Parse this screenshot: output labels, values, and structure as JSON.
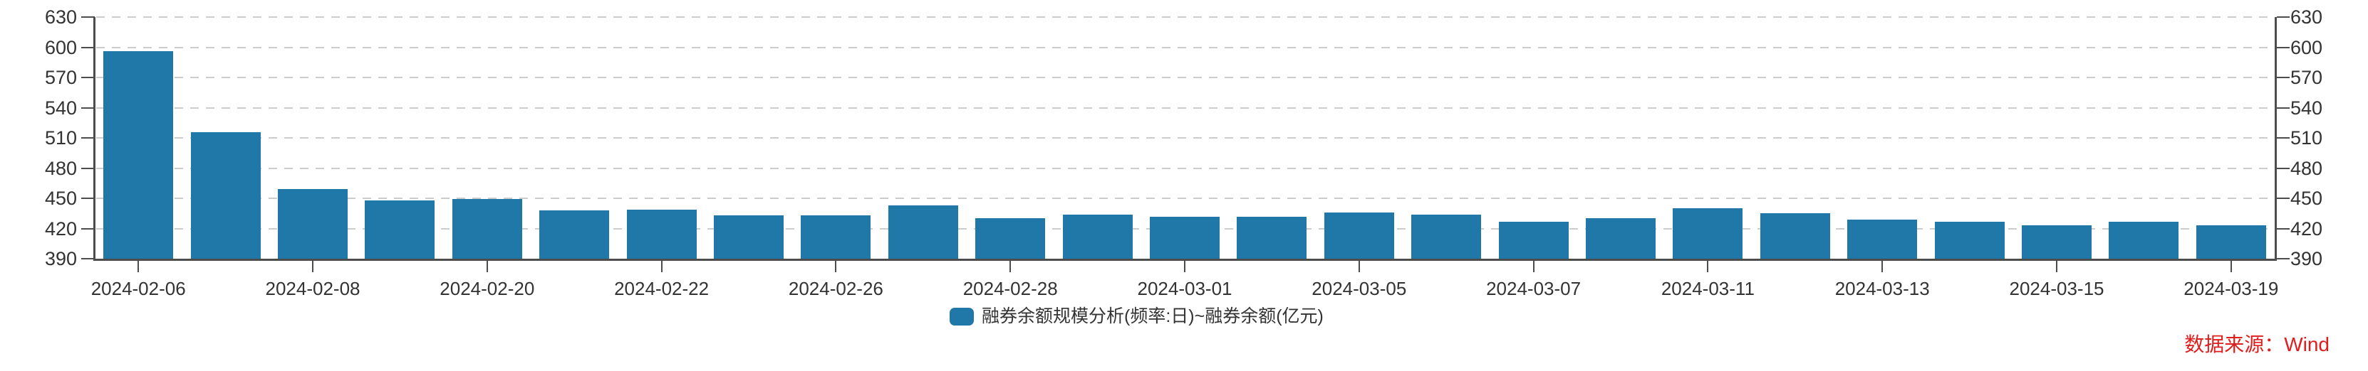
{
  "chart_data": {
    "type": "bar",
    "legend_label": "融券余额规模分析(频率:日)~融券余额(亿元)",
    "source_note": "数据来源：Wind",
    "unit": "亿元",
    "values": [
      596,
      516,
      459,
      448,
      449,
      438,
      439,
      433,
      433,
      443,
      430,
      434,
      432,
      432,
      436,
      434,
      427,
      430,
      440,
      435,
      429,
      427,
      423,
      427,
      423
    ],
    "x_tick_labels": [
      "2024-02-06",
      "2024-02-08",
      "2024-02-20",
      "2024-02-22",
      "2024-02-26",
      "2024-02-28",
      "2024-03-01",
      "2024-03-05",
      "2024-03-07",
      "2024-03-11",
      "2024-03-13",
      "2024-03-15",
      "2024-03-19"
    ],
    "x_label_every": 2,
    "y_ticks": [
      390,
      420,
      450,
      480,
      510,
      540,
      570,
      600,
      630
    ],
    "ylim": [
      390,
      630
    ],
    "grid": "horizontal-dashed",
    "legend_position": "bottom-center",
    "colors": {
      "bar": "#1f78a8",
      "axis": "#4d4d4d",
      "grid": "#cccccc",
      "tick_text": "#333333",
      "source": "#e01d1d"
    }
  }
}
